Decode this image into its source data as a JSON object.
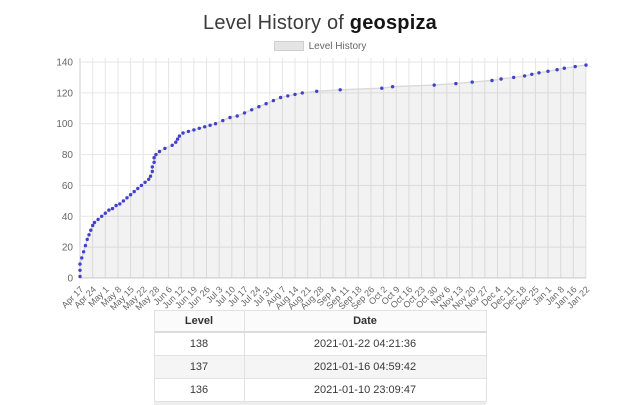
{
  "page": {
    "title_regular": "Level History of ",
    "title_username": "geospiza"
  },
  "legend": {
    "label": "Level History"
  },
  "chart_data": {
    "type": "line",
    "title": "Level History of geospiza",
    "legend_entries": [
      "Level History"
    ],
    "legend_position": "top",
    "grid": true,
    "xlabel": "",
    "ylabel": "",
    "ylim": [
      0,
      140
    ],
    "y_ticks": [
      0,
      20,
      40,
      60,
      80,
      100,
      120,
      140
    ],
    "x_range": [
      "2020-04-17",
      "2021-01-22"
    ],
    "x_tick_labels": [
      "Apr 17",
      "Apr 24",
      "May 1",
      "May 8",
      "May 15",
      "May 22",
      "May 28",
      "Jun 6",
      "Jun 12",
      "Jun 19",
      "Jun 26",
      "Jul 3",
      "Jul 10",
      "Jul 17",
      "Jul 24",
      "Jul 31",
      "Aug 7",
      "Aug 14",
      "Aug 21",
      "Aug 28",
      "Sep 4",
      "Sep 11",
      "Sep 18",
      "Sep 26",
      "Oct 2",
      "Oct 9",
      "Oct 16",
      "Oct 23",
      "Oct 30",
      "Nov 6",
      "Nov 13",
      "Nov 20",
      "Nov 27",
      "Dec 4",
      "Dec 11",
      "Dec 18",
      "Dec 25",
      "Jan 1",
      "Jan 8",
      "Jan 16",
      "Jan 22"
    ],
    "colors": {
      "point": "#4241cb",
      "line": "#d9d9d9",
      "fill": "rgba(0,0,0,0.05)",
      "grid": "#e6e6e6",
      "axis": "#cccccc",
      "tick_text": "#666666"
    },
    "series": [
      {
        "name": "Level History",
        "points": [
          {
            "date": "2020-04-17",
            "level": 1
          },
          {
            "date": "2020-04-17",
            "level": 5
          },
          {
            "date": "2020-04-17",
            "level": 9
          },
          {
            "date": "2020-04-18",
            "level": 13
          },
          {
            "date": "2020-04-19",
            "level": 17
          },
          {
            "date": "2020-04-20",
            "level": 21
          },
          {
            "date": "2020-04-21",
            "level": 25
          },
          {
            "date": "2020-04-22",
            "level": 28
          },
          {
            "date": "2020-04-23",
            "level": 31
          },
          {
            "date": "2020-04-24",
            "level": 34
          },
          {
            "date": "2020-04-25",
            "level": 36
          },
          {
            "date": "2020-04-27",
            "level": 38
          },
          {
            "date": "2020-04-29",
            "level": 40
          },
          {
            "date": "2020-05-01",
            "level": 42
          },
          {
            "date": "2020-05-03",
            "level": 44
          },
          {
            "date": "2020-05-05",
            "level": 45
          },
          {
            "date": "2020-05-07",
            "level": 47
          },
          {
            "date": "2020-05-09",
            "level": 48
          },
          {
            "date": "2020-05-11",
            "level": 50
          },
          {
            "date": "2020-05-13",
            "level": 52
          },
          {
            "date": "2020-05-15",
            "level": 54
          },
          {
            "date": "2020-05-17",
            "level": 56
          },
          {
            "date": "2020-05-19",
            "level": 58
          },
          {
            "date": "2020-05-21",
            "level": 60
          },
          {
            "date": "2020-05-23",
            "level": 62
          },
          {
            "date": "2020-05-25",
            "level": 64
          },
          {
            "date": "2020-05-26",
            "level": 66
          },
          {
            "date": "2020-05-27",
            "level": 69
          },
          {
            "date": "2020-05-27",
            "level": 72
          },
          {
            "date": "2020-05-28",
            "level": 75
          },
          {
            "date": "2020-05-28",
            "level": 78
          },
          {
            "date": "2020-05-29",
            "level": 80
          },
          {
            "date": "2020-05-31",
            "level": 82
          },
          {
            "date": "2020-06-03",
            "level": 84
          },
          {
            "date": "2020-06-07",
            "level": 86
          },
          {
            "date": "2020-06-09",
            "level": 88
          },
          {
            "date": "2020-06-10",
            "level": 90
          },
          {
            "date": "2020-06-11",
            "level": 92
          },
          {
            "date": "2020-06-13",
            "level": 94
          },
          {
            "date": "2020-06-16",
            "level": 95
          },
          {
            "date": "2020-06-19",
            "level": 96
          },
          {
            "date": "2020-06-22",
            "level": 97
          },
          {
            "date": "2020-06-25",
            "level": 98
          },
          {
            "date": "2020-06-28",
            "level": 99
          },
          {
            "date": "2020-07-01",
            "level": 100
          },
          {
            "date": "2020-07-05",
            "level": 102
          },
          {
            "date": "2020-07-09",
            "level": 104
          },
          {
            "date": "2020-07-13",
            "level": 105
          },
          {
            "date": "2020-07-17",
            "level": 107
          },
          {
            "date": "2020-07-21",
            "level": 109
          },
          {
            "date": "2020-07-25",
            "level": 111
          },
          {
            "date": "2020-07-29",
            "level": 113
          },
          {
            "date": "2020-08-02",
            "level": 115
          },
          {
            "date": "2020-08-06",
            "level": 117
          },
          {
            "date": "2020-08-10",
            "level": 118
          },
          {
            "date": "2020-08-14",
            "level": 119
          },
          {
            "date": "2020-08-18",
            "level": 120
          },
          {
            "date": "2020-08-26",
            "level": 121
          },
          {
            "date": "2020-09-08",
            "level": 122
          },
          {
            "date": "2020-10-01",
            "level": 123
          },
          {
            "date": "2020-10-07",
            "level": 124
          },
          {
            "date": "2020-10-30",
            "level": 125
          },
          {
            "date": "2020-11-11",
            "level": 126
          },
          {
            "date": "2020-11-20",
            "level": 127
          },
          {
            "date": "2020-12-01",
            "level": 128
          },
          {
            "date": "2020-12-06",
            "level": 129
          },
          {
            "date": "2020-12-13",
            "level": 130
          },
          {
            "date": "2020-12-19",
            "level": 131
          },
          {
            "date": "2020-12-23",
            "level": 132
          },
          {
            "date": "2020-12-27",
            "level": 133
          },
          {
            "date": "2021-01-01",
            "level": 134
          },
          {
            "date": "2021-01-06",
            "level": 135
          },
          {
            "date": "2021-01-10",
            "level": 136
          },
          {
            "date": "2021-01-16",
            "level": 137
          },
          {
            "date": "2021-01-22",
            "level": 138
          }
        ]
      }
    ]
  },
  "table": {
    "headers": [
      "Level",
      "Date"
    ],
    "rows": [
      {
        "level": "138",
        "date": "2021-01-22 04:21:36"
      },
      {
        "level": "137",
        "date": "2021-01-16 04:59:42"
      },
      {
        "level": "136",
        "date": "2021-01-10 23:09:47"
      }
    ]
  }
}
